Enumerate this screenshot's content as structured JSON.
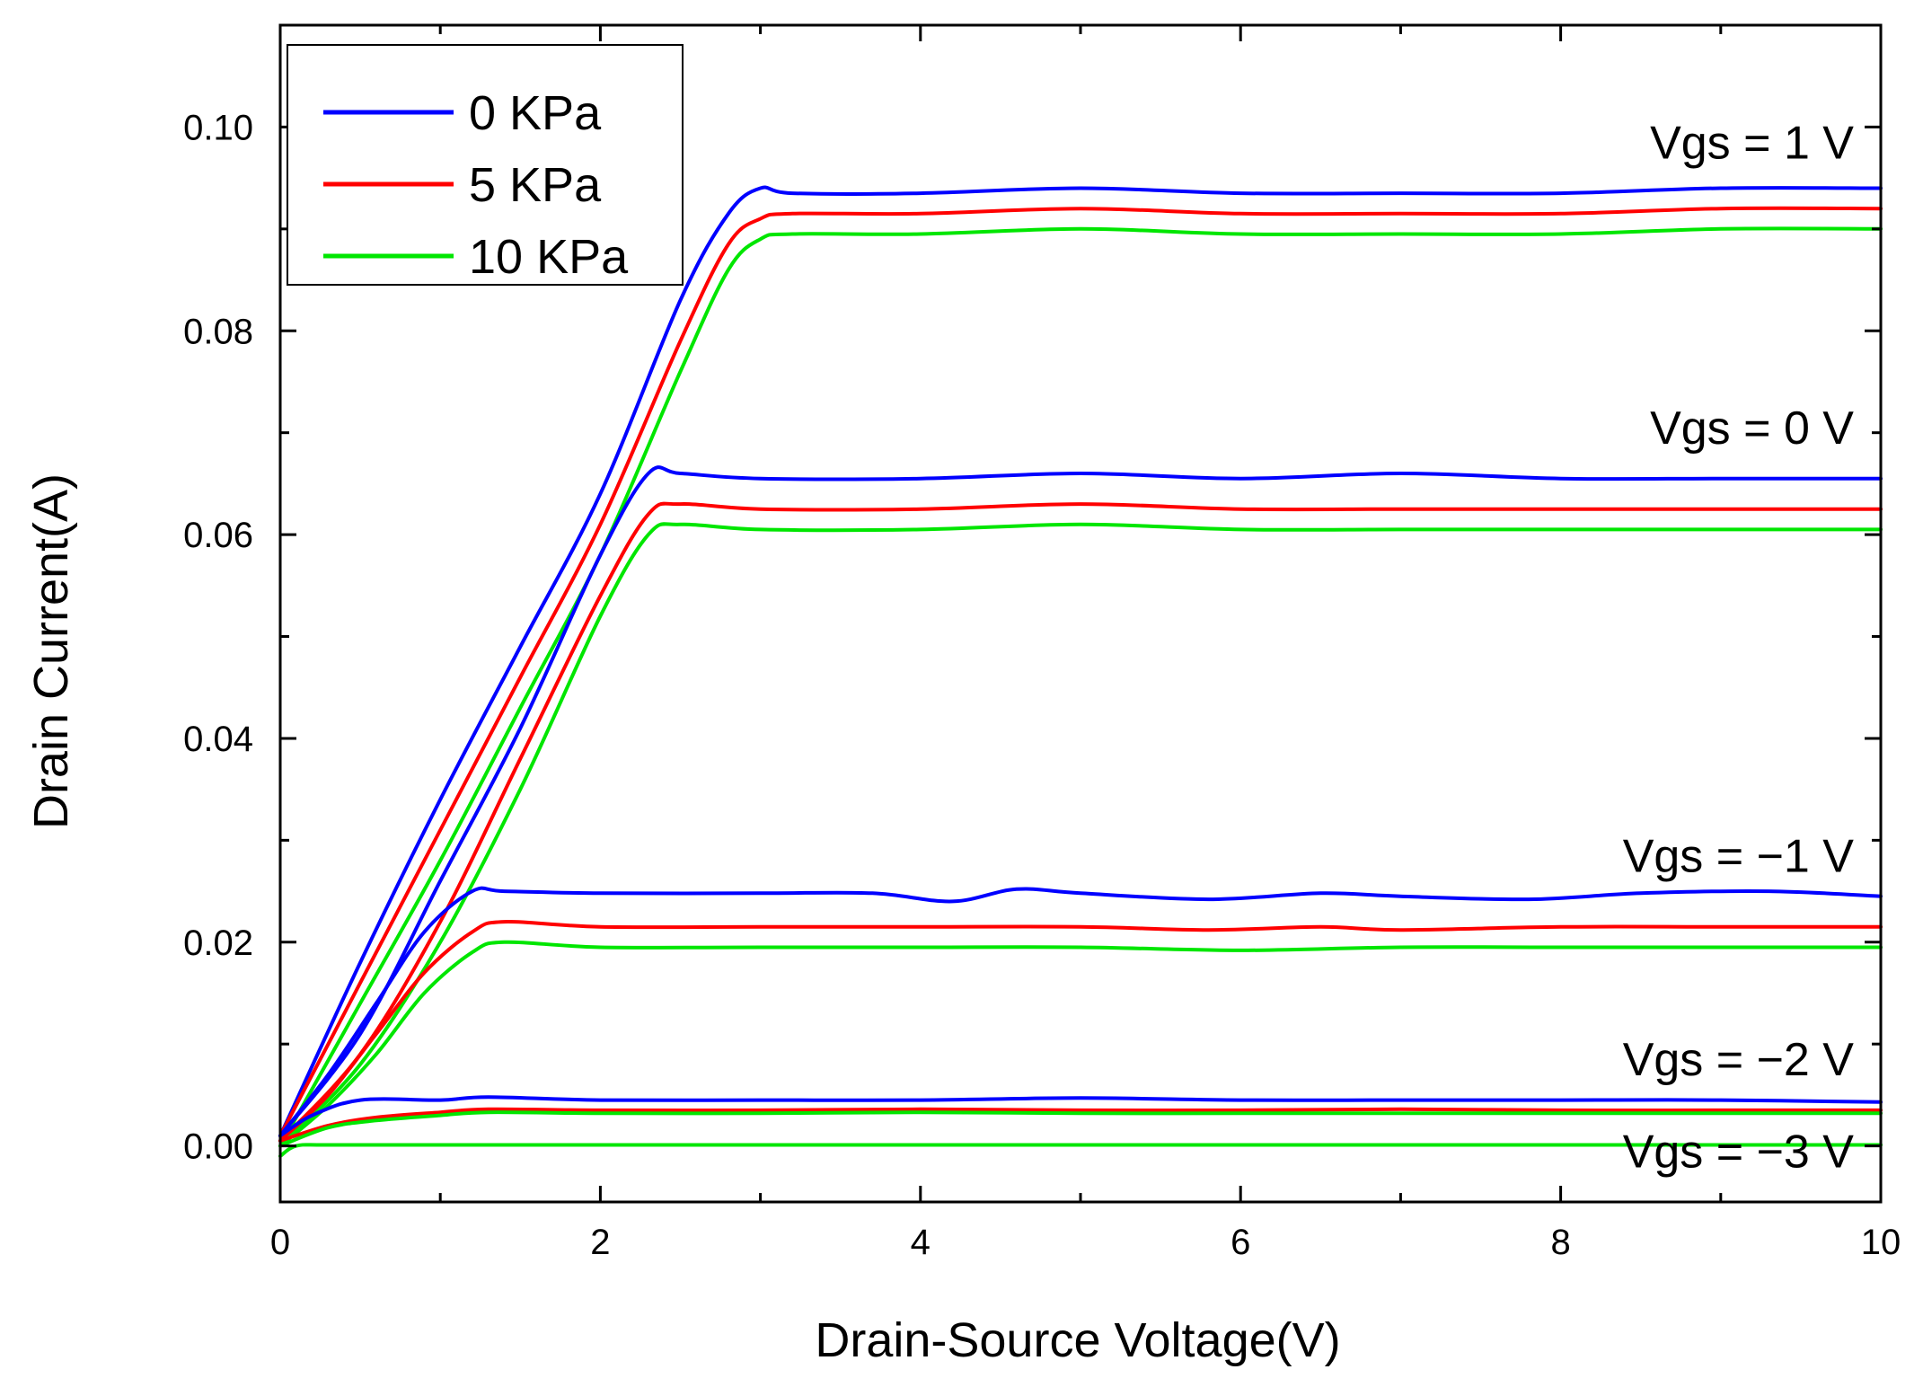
{
  "chart_data": {
    "type": "line",
    "title": "",
    "xlabel": "Drain-Source Voltage(V)",
    "ylabel": "Drain Current(A)",
    "xlim": [
      0,
      10
    ],
    "ylim": [
      -0.0055,
      0.11
    ],
    "xticks": [
      0,
      2,
      4,
      6,
      8,
      10
    ],
    "xtick_labels": [
      "0",
      "2",
      "4",
      "6",
      "8",
      "10"
    ],
    "yticks": [
      0.0,
      0.02,
      0.04,
      0.06,
      0.08,
      0.1
    ],
    "ytick_labels": [
      "0.00",
      "0.02",
      "0.04",
      "0.06",
      "0.08",
      "0.10"
    ],
    "grid": false,
    "legend_position": "top-left",
    "legend": [
      {
        "label": "0 KPa",
        "color": "#0000ff"
      },
      {
        "label": "5 KPa",
        "color": "#ff0000"
      },
      {
        "label": "10 KPa",
        "color": "#00e600"
      }
    ],
    "annotations": [
      {
        "text": "Vgs = 1 V",
        "x": 8.3,
        "y": 0.0985
      },
      {
        "text": "Vgs = 0 V",
        "x": 8.3,
        "y": 0.0705
      },
      {
        "text": "Vgs = −1 V",
        "x": 8.3,
        "y": 0.0285
      },
      {
        "text": "Vgs = −2 V",
        "x": 8.3,
        "y": 0.0085
      },
      {
        "text": "Vgs = −3 V",
        "x": 8.3,
        "y": -0.0005
      }
    ],
    "series": [
      {
        "name": "0 KPa",
        "vgs": "1 V",
        "color": "#0000ff",
        "x": [
          0,
          0.5,
          1.0,
          1.5,
          2.0,
          2.5,
          2.8,
          3.0,
          3.2,
          4.0,
          5.0,
          6.0,
          7.0,
          8.0,
          9.0,
          10.0
        ],
        "y": [
          0.001,
          0.018,
          0.034,
          0.049,
          0.064,
          0.083,
          0.0915,
          0.094,
          0.0935,
          0.0935,
          0.094,
          0.0935,
          0.0935,
          0.0935,
          0.094,
          0.094
        ]
      },
      {
        "name": "5 KPa",
        "vgs": "1 V",
        "color": "#ff0000",
        "x": [
          0,
          0.5,
          1.0,
          1.5,
          2.0,
          2.5,
          2.8,
          3.0,
          3.2,
          4.0,
          5.0,
          6.0,
          7.0,
          8.0,
          9.0,
          10.0
        ],
        "y": [
          0.001,
          0.016,
          0.031,
          0.046,
          0.061,
          0.079,
          0.0885,
          0.091,
          0.0915,
          0.0915,
          0.092,
          0.0915,
          0.0915,
          0.0915,
          0.092,
          0.092
        ]
      },
      {
        "name": "10 KPa",
        "vgs": "1 V",
        "color": "#00e600",
        "x": [
          0,
          0.5,
          1.0,
          1.5,
          2.0,
          2.5,
          2.8,
          3.0,
          3.2,
          4.0,
          5.0,
          6.0,
          7.0,
          8.0,
          9.0,
          10.0
        ],
        "y": [
          0.0,
          0.014,
          0.028,
          0.043,
          0.058,
          0.076,
          0.086,
          0.089,
          0.0895,
          0.0895,
          0.09,
          0.0895,
          0.0895,
          0.0895,
          0.09,
          0.09
        ]
      },
      {
        "name": "0 KPa",
        "vgs": "0 V",
        "color": "#0000ff",
        "x": [
          0,
          0.5,
          1.0,
          1.5,
          2.0,
          2.3,
          2.5,
          3.0,
          4.0,
          5.0,
          6.0,
          7.0,
          8.0,
          9.0,
          10.0
        ],
        "y": [
          0.001,
          0.011,
          0.026,
          0.041,
          0.058,
          0.066,
          0.066,
          0.0655,
          0.0655,
          0.066,
          0.0655,
          0.066,
          0.0655,
          0.0655,
          0.0655
        ]
      },
      {
        "name": "5 KPa",
        "vgs": "0 V",
        "color": "#ff0000",
        "x": [
          0,
          0.5,
          1.0,
          1.5,
          2.0,
          2.3,
          2.5,
          3.0,
          4.0,
          5.0,
          6.0,
          7.0,
          8.0,
          9.0,
          10.0
        ],
        "y": [
          0.0005,
          0.009,
          0.022,
          0.038,
          0.054,
          0.062,
          0.063,
          0.0625,
          0.0625,
          0.063,
          0.0625,
          0.0625,
          0.0625,
          0.0625,
          0.0625
        ]
      },
      {
        "name": "10 KPa",
        "vgs": "0 V",
        "color": "#00e600",
        "x": [
          0,
          0.5,
          1.0,
          1.5,
          2.0,
          2.3,
          2.5,
          3.0,
          4.0,
          5.0,
          6.0,
          7.0,
          8.0,
          9.0,
          10.0
        ],
        "y": [
          0.0,
          0.008,
          0.02,
          0.035,
          0.052,
          0.06,
          0.061,
          0.0605,
          0.0605,
          0.061,
          0.0605,
          0.0605,
          0.0605,
          0.0605,
          0.0605
        ]
      },
      {
        "name": "0 KPa",
        "vgs": "-1 V",
        "color": "#0000ff",
        "x": [
          0,
          0.3,
          0.6,
          0.9,
          1.2,
          1.4,
          2.0,
          3.0,
          3.7,
          4.2,
          4.6,
          5.0,
          5.8,
          6.5,
          7.0,
          7.8,
          8.5,
          9.3,
          10.0
        ],
        "y": [
          0.001,
          0.007,
          0.014,
          0.021,
          0.025,
          0.025,
          0.0248,
          0.0248,
          0.0248,
          0.024,
          0.0252,
          0.0248,
          0.0242,
          0.0248,
          0.0245,
          0.0242,
          0.0248,
          0.025,
          0.0245
        ]
      },
      {
        "name": "5 KPa",
        "vgs": "-1 V",
        "color": "#ff0000",
        "x": [
          0,
          0.3,
          0.6,
          0.9,
          1.2,
          1.4,
          2.0,
          3.0,
          4.0,
          5.0,
          5.8,
          6.5,
          7.0,
          8.0,
          9.0,
          10.0
        ],
        "y": [
          0.0005,
          0.005,
          0.011,
          0.017,
          0.021,
          0.022,
          0.0215,
          0.0215,
          0.0215,
          0.0215,
          0.0212,
          0.0215,
          0.0212,
          0.0215,
          0.0215,
          0.0215
        ]
      },
      {
        "name": "10 KPa",
        "vgs": "-1 V",
        "color": "#00e600",
        "x": [
          0,
          0.3,
          0.6,
          0.9,
          1.2,
          1.4,
          2.0,
          3.0,
          4.0,
          5.0,
          6.0,
          7.0,
          8.0,
          9.0,
          10.0
        ],
        "y": [
          0.0,
          0.004,
          0.009,
          0.015,
          0.019,
          0.02,
          0.0195,
          0.0195,
          0.0195,
          0.0195,
          0.0192,
          0.0195,
          0.0195,
          0.0195,
          0.0195
        ]
      },
      {
        "name": "0 KPa",
        "vgs": "-2 V",
        "color": "#0000ff",
        "x": [
          0,
          0.2,
          0.5,
          1.0,
          1.3,
          2.0,
          3.0,
          4.0,
          5.0,
          6.0,
          7.0,
          8.0,
          9.0,
          10.0
        ],
        "y": [
          0.001,
          0.003,
          0.0045,
          0.0045,
          0.0048,
          0.0045,
          0.0045,
          0.0045,
          0.0047,
          0.0045,
          0.0045,
          0.0045,
          0.0045,
          0.0043
        ]
      },
      {
        "name": "5 KPa",
        "vgs": "-2 V",
        "color": "#ff0000",
        "x": [
          0,
          0.3,
          0.6,
          1.0,
          1.3,
          2.0,
          3.0,
          4.0,
          5.0,
          6.0,
          7.0,
          8.0,
          9.0,
          10.0
        ],
        "y": [
          0.0005,
          0.002,
          0.0028,
          0.0033,
          0.0036,
          0.0035,
          0.0035,
          0.0036,
          0.0035,
          0.0035,
          0.0036,
          0.0035,
          0.0035,
          0.0035
        ]
      },
      {
        "name": "10 KPa",
        "vgs": "-2 V",
        "color": "#00e600",
        "x": [
          0,
          0.3,
          0.6,
          1.0,
          1.3,
          2.0,
          3.0,
          4.0,
          5.0,
          6.0,
          7.0,
          8.0,
          9.0,
          10.0
        ],
        "y": [
          0.0,
          0.0018,
          0.0025,
          0.003,
          0.0033,
          0.0032,
          0.0032,
          0.0033,
          0.0032,
          0.0032,
          0.0032,
          0.0032,
          0.0032,
          0.0032
        ]
      },
      {
        "name": "10 KPa",
        "vgs": "-3 V",
        "color": "#00e600",
        "x": [
          0,
          0.1,
          0.3,
          1.0,
          2.0,
          4.0,
          6.0,
          8.0,
          10.0
        ],
        "y": [
          -0.001,
          0.0,
          0.0001,
          0.0001,
          0.0001,
          0.0001,
          0.0001,
          0.0001,
          0.0001
        ]
      }
    ]
  }
}
